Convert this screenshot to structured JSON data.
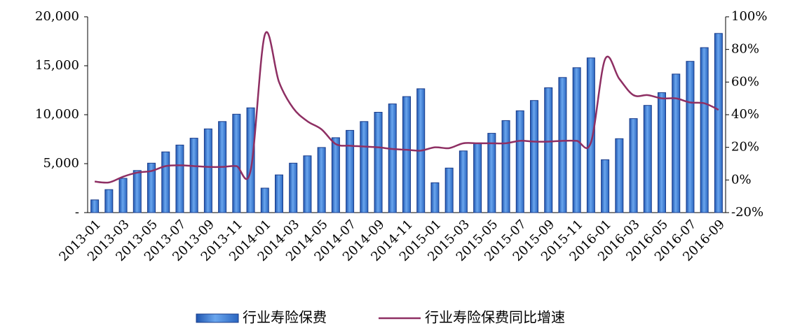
{
  "chart_data": {
    "type": "bar-line",
    "categories": [
      "2013-01",
      null,
      "2013-03",
      null,
      "2013-05",
      null,
      "2013-07",
      null,
      "2013-09",
      null,
      "2013-11",
      null,
      "2014-01",
      null,
      "2014-03",
      null,
      "2014-05",
      null,
      "2014-07",
      null,
      "2014-09",
      null,
      "2014-11",
      null,
      "2015-01",
      null,
      "2015-03",
      null,
      "2015-05",
      null,
      "2015-07",
      null,
      "2015-09",
      null,
      "2015-11",
      null,
      "2016-01",
      null,
      "2016-03",
      null,
      "2016-05",
      null,
      "2016-07",
      null,
      "2016-09"
    ],
    "series": [
      {
        "name": "行业寿险保费",
        "type": "bar",
        "color": "#3b7fd6",
        "values": [
          1300,
          2350,
          3500,
          4300,
          5050,
          6200,
          6900,
          7600,
          8550,
          9300,
          10050,
          10700,
          2500,
          3850,
          5050,
          5800,
          6650,
          7650,
          8400,
          9300,
          10250,
          11100,
          11850,
          12650,
          3050,
          4550,
          6300,
          7100,
          8100,
          9400,
          10400,
          11450,
          12750,
          13800,
          14800,
          15800,
          5400,
          7550,
          9600,
          10950,
          12250,
          14150,
          15450,
          16850,
          18300
        ]
      },
      {
        "name": "行业寿险保费同比增速",
        "type": "line",
        "axis": "y2",
        "color": "#8e2f63",
        "values": [
          -1,
          -1.5,
          2,
          4.5,
          5.5,
          8.5,
          9,
          8.5,
          8,
          8,
          8.5,
          6,
          89,
          60,
          44,
          36,
          31,
          22,
          21,
          20.5,
          20,
          19,
          18.5,
          18,
          20,
          19.5,
          22.5,
          22.5,
          22.5,
          22.5,
          24,
          23.5,
          23.5,
          24,
          24,
          23,
          74,
          62,
          52,
          52,
          50,
          50,
          47.5,
          47,
          43
        ]
      }
    ],
    "ylim": [
      0,
      20000
    ],
    "yticks": [
      {
        "value": 0,
        "label": "-"
      },
      {
        "value": 5000,
        "label": "5,000"
      },
      {
        "value": 10000,
        "label": "10,000"
      },
      {
        "value": 15000,
        "label": "15,000"
      },
      {
        "value": 20000,
        "label": "20,000"
      }
    ],
    "y2lim": [
      -20,
      100
    ],
    "y2ticks": [
      {
        "value": -20,
        "label": "-20%"
      },
      {
        "value": 0,
        "label": "0%"
      },
      {
        "value": 20,
        "label": "20%"
      },
      {
        "value": 40,
        "label": "40%"
      },
      {
        "value": 60,
        "label": "60%"
      },
      {
        "value": 80,
        "label": "80%"
      },
      {
        "value": 100,
        "label": "100%"
      }
    ],
    "legend": "bottom"
  }
}
